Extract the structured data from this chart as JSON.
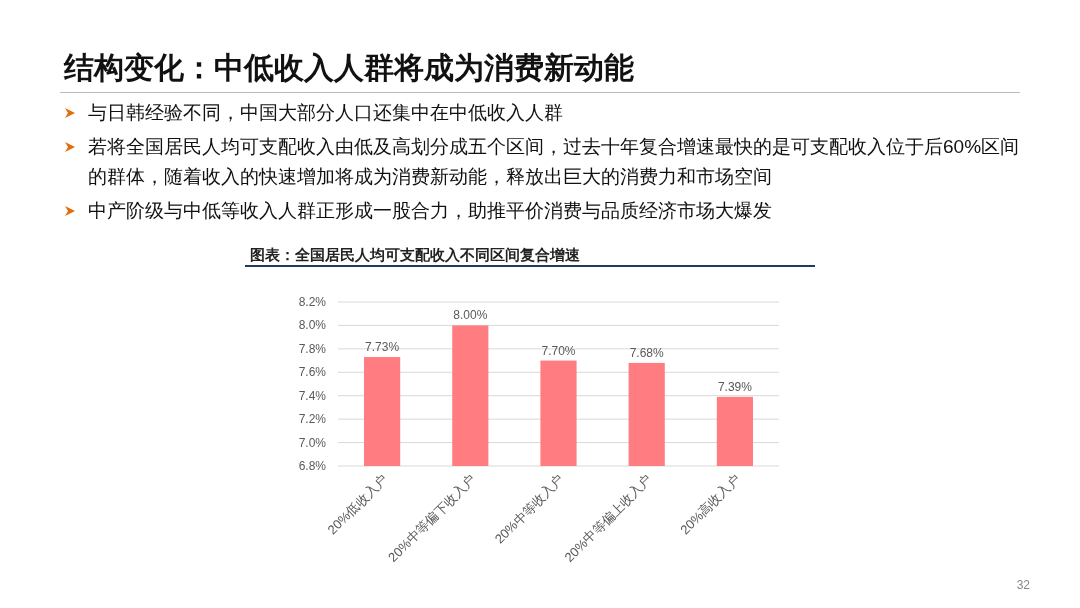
{
  "chart_data": {
    "type": "bar",
    "title": "结构变化：中低收入人群将成为消费新动能",
    "subtitle": "图表：全国居民人均可支配收入不同区间复合增速",
    "annotations": [
      "与日韩经验不同，中国大部分人口还集中在中低收入人群",
      "若将全国居民人均可支配收入由低及高划分成五个区间，过去十年复合增速最快的是可支配收入位于后60%区间的群体，随着收入的快速增加将成为消费新动能，释放出巨大的消费力和市场空间",
      "中产阶级与中低等收入人群正形成一股合力，助推平价消费与品质经济市场大爆发",
      "32"
    ],
    "categories": [
      "20%低收入户",
      "20%中等偏下收入户",
      "20%中等收入户",
      "20%中等偏上收入户",
      "20%高收入户"
    ],
    "values": [
      7.73,
      8.0,
      7.7,
      7.68,
      7.39
    ],
    "value_labels": [
      "7.73%",
      "8.00%",
      "7.70%",
      "7.68%",
      "7.39%"
    ],
    "color": "#ff7c80",
    "ylim": [
      6.8,
      8.2
    ],
    "yticks": [
      {
        "value": 6.8,
        "label": "6.8%"
      },
      {
        "value": 7.0,
        "label": "7.0%"
      },
      {
        "value": 7.2,
        "label": "7.2%"
      },
      {
        "value": 7.4,
        "label": "7.4%"
      },
      {
        "value": 7.6,
        "label": "7.6%"
      },
      {
        "value": 7.8,
        "label": "7.8%"
      },
      {
        "value": 8.0,
        "label": "8.0%"
      },
      {
        "value": 8.2,
        "label": "8.2%"
      }
    ],
    "grid": "y"
  }
}
